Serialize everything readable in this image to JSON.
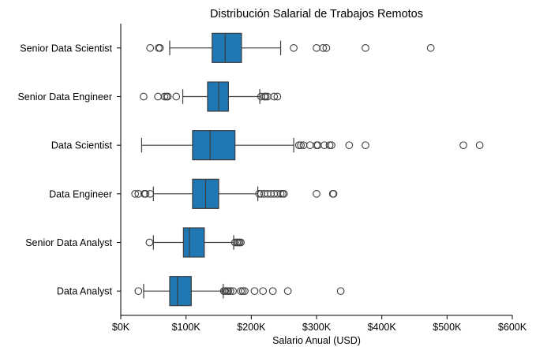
{
  "chart_data": {
    "type": "boxplot",
    "orientation": "horizontal",
    "title": "Distribución Salarial de Trabajos Remotos",
    "xlabel": "Salario Anual (USD)",
    "ylabel": "",
    "xlim": [
      0,
      600000
    ],
    "x_ticks": [
      0,
      100000,
      200000,
      300000,
      400000,
      500000,
      600000
    ],
    "x_tick_labels": [
      "$0K",
      "$100K",
      "$200K",
      "$300K",
      "$400K",
      "$500K",
      "$600K"
    ],
    "grid": false,
    "legend": "none",
    "box_color": "#1f77b4",
    "line_color": "#3d3d3d",
    "categories": [
      "Senior Data Scientist",
      "Senior Data Engineer",
      "Data Scientist",
      "Data Engineer",
      "Senior Data Analyst",
      "Data Analyst"
    ],
    "boxes": [
      {
        "category": "Senior Data Scientist",
        "whisker_low": 75000,
        "q1": 140000,
        "median": 160000,
        "q3": 185000,
        "whisker_high": 245000,
        "outliers": [
          45000,
          58000,
          60000,
          265000,
          300000,
          310000,
          315000,
          375000,
          475000
        ]
      },
      {
        "category": "Senior Data Engineer",
        "whisker_low": 95000,
        "q1": 133000,
        "median": 150000,
        "q3": 165000,
        "whisker_high": 213000,
        "outliers": [
          35000,
          57000,
          67000,
          70000,
          72000,
          85000,
          215000,
          220000,
          222000,
          225000,
          235000,
          240000
        ]
      },
      {
        "category": "Data Scientist",
        "whisker_low": 32000,
        "q1": 110000,
        "median": 137000,
        "q3": 175000,
        "whisker_high": 265000,
        "outliers": [
          273000,
          276000,
          280000,
          290000,
          300000,
          302000,
          312000,
          320000,
          323000,
          350000,
          375000,
          525000,
          550000
        ]
      },
      {
        "category": "Data Engineer",
        "whisker_low": 50000,
        "q1": 110000,
        "median": 130000,
        "q3": 150000,
        "whisker_high": 210000,
        "outliers": [
          22000,
          27000,
          36000,
          38000,
          45000,
          212000,
          215000,
          220000,
          225000,
          230000,
          235000,
          240000,
          245000,
          248000,
          250000,
          300000,
          325000,
          326000
        ]
      },
      {
        "category": "Senior Data Analyst",
        "whisker_low": 50000,
        "q1": 96000,
        "median": 105000,
        "q3": 128000,
        "whisker_high": 173000,
        "outliers": [
          44000,
          175000,
          178000,
          180000,
          182000,
          184000
        ]
      },
      {
        "category": "Data Analyst",
        "whisker_low": 35000,
        "q1": 75000,
        "median": 87000,
        "q3": 108000,
        "whisker_high": 157000,
        "outliers": [
          27000,
          158000,
          160000,
          163000,
          165000,
          168000,
          172000,
          184000,
          187000,
          190000,
          205000,
          218000,
          233000,
          256000,
          337000
        ]
      }
    ]
  }
}
